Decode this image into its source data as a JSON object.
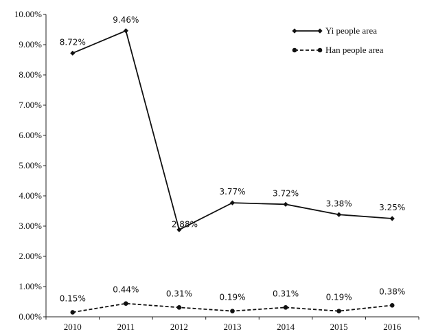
{
  "chart_data": {
    "type": "line",
    "categories": [
      "2010",
      "2011",
      "2012",
      "2013",
      "2014",
      "2015",
      "2016"
    ],
    "ylim": [
      0,
      10
    ],
    "yticks": [
      "0.00%",
      "1.00%",
      "2.00%",
      "3.00%",
      "4.00%",
      "5.00%",
      "6.00%",
      "7.00%",
      "8.00%",
      "9.00%",
      "10.00%"
    ],
    "grid": false,
    "legend_position": "top-right",
    "series": [
      {
        "name": "Yi people area",
        "values": [
          8.72,
          9.46,
          2.88,
          3.77,
          3.72,
          3.38,
          3.25
        ],
        "labels": [
          "8.72%",
          "9.46%",
          "2.88%",
          "3.77%",
          "3.72%",
          "3.38%",
          "3.25%"
        ],
        "line_style": "solid",
        "marker": "diamond",
        "color": "#111111"
      },
      {
        "name": "Han people area",
        "values": [
          0.15,
          0.44,
          0.31,
          0.19,
          0.31,
          0.19,
          0.38
        ],
        "labels": [
          "0.15%",
          "0.44%",
          "0.31%",
          "0.19%",
          "0.31%",
          "0.19%",
          "0.38%"
        ],
        "line_style": "dashed",
        "marker": "circle",
        "color": "#111111"
      }
    ]
  }
}
